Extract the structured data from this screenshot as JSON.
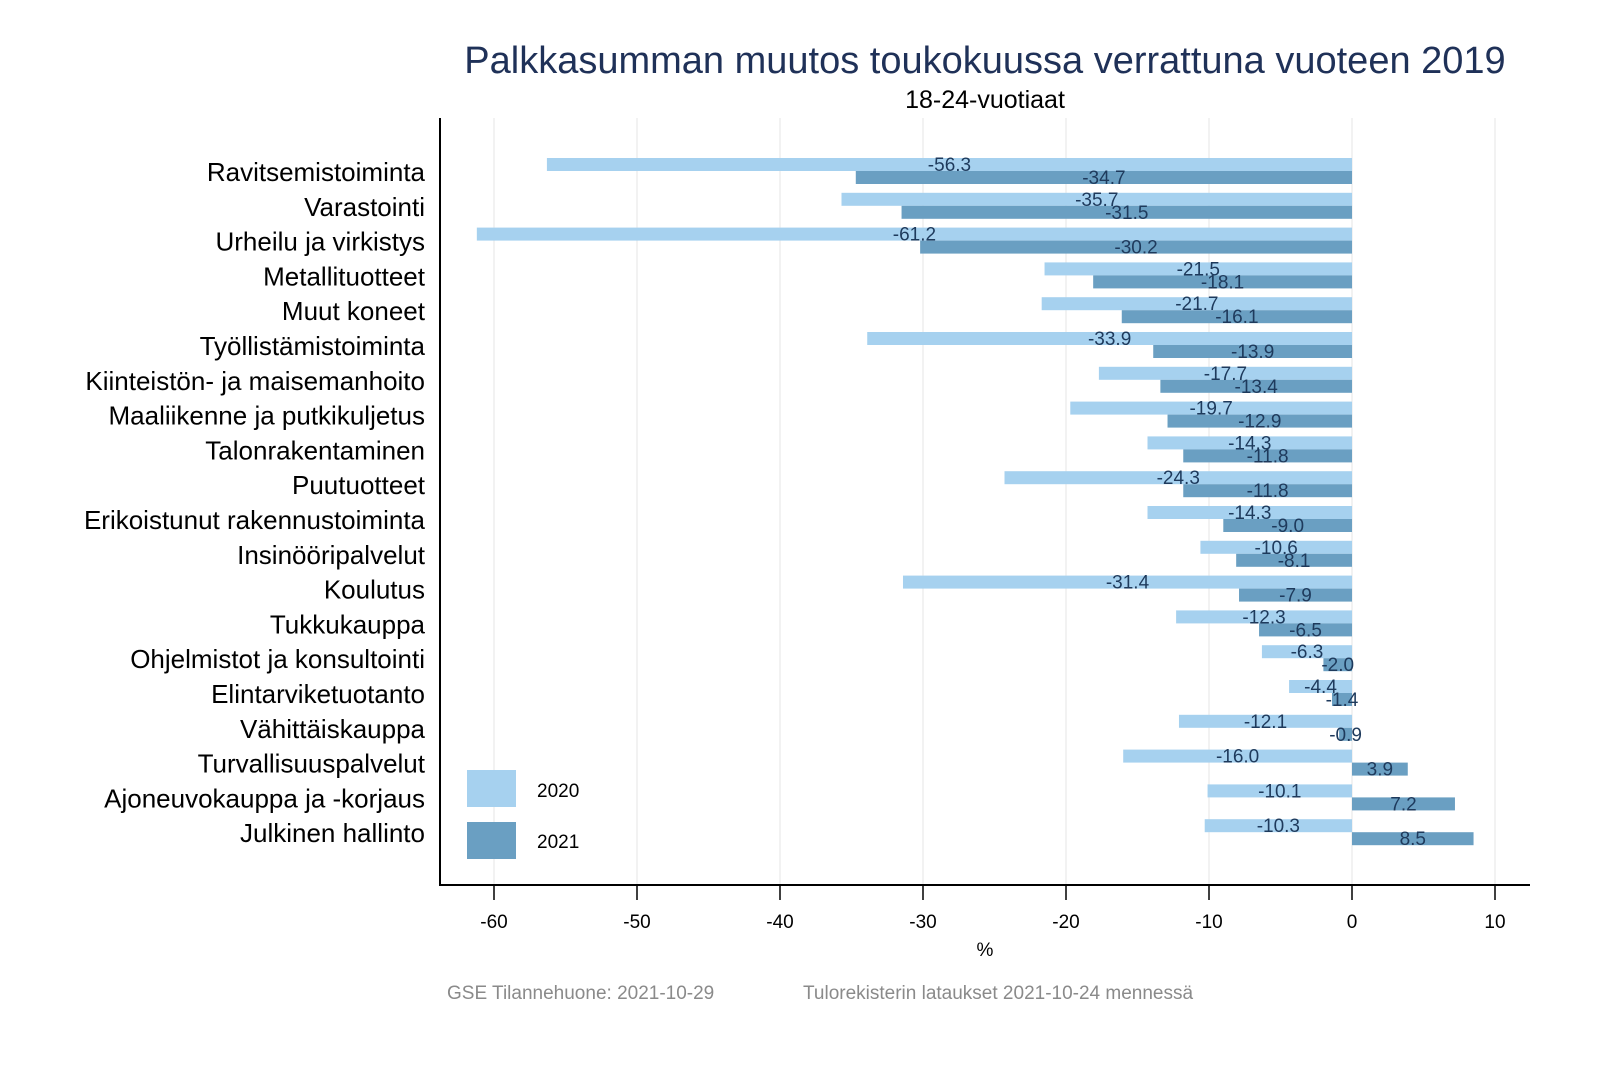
{
  "chart_data": {
    "type": "bar",
    "orientation": "horizontal",
    "title": "Palkkasumman muutos toukokuussa verrattuna vuoteen 2019",
    "subtitle": "18-24-vuotiaat",
    "xlabel": "%",
    "ylabel": "",
    "xlim": [
      -64,
      12.5
    ],
    "xticks": [
      -60,
      -50,
      -40,
      -30,
      -20,
      -10,
      0,
      10
    ],
    "grid": true,
    "legend_position": "bottom-left",
    "categories": [
      "Ravitsemistoiminta",
      "Varastointi",
      "Urheilu ja virkistys",
      "Metallituotteet",
      "Muut koneet",
      "Työllistämistoiminta",
      "Kiinteistön- ja maisemanhoito",
      "Maaliikenne ja putkikuljetus",
      "Talonrakentaminen",
      "Puutuotteet",
      "Erikoistunut rakennustoiminta",
      "Insinööripalvelut",
      "Koulutus",
      "Tukkukauppa",
      "Ohjelmistot ja konsultointi",
      "Elintarviketuotanto",
      "Vähittäiskauppa",
      "Turvallisuuspalvelut",
      "Ajoneuvokauppa ja -korjaus",
      "Julkinen hallinto"
    ],
    "series": [
      {
        "name": "2020",
        "color": "#a6d1ef",
        "values": [
          -56.3,
          -35.7,
          -61.2,
          -21.5,
          -21.7,
          -33.9,
          -17.7,
          -19.7,
          -14.3,
          -24.3,
          -14.3,
          -10.6,
          -31.4,
          -12.3,
          -6.3,
          -4.4,
          -12.1,
          -16.0,
          -10.1,
          -10.3
        ],
        "labels": [
          "-56.3",
          "-35.7",
          "-61.2",
          "-21.5",
          "-21.7",
          "-33.9",
          "-17.7",
          "-19.7",
          "-14.3",
          "-24.3",
          "-14.3",
          "-10.6",
          "-31.4",
          "-12.3",
          "-6.3",
          "-4.4",
          "-12.1",
          "-16.0",
          "-10.1",
          "-10.3"
        ]
      },
      {
        "name": "2021",
        "color": "#6a9fc2",
        "values": [
          -34.7,
          -31.5,
          -30.2,
          -18.1,
          -16.1,
          -13.9,
          -13.4,
          -12.9,
          -11.8,
          -11.8,
          -9.0,
          -8.1,
          -7.9,
          -6.5,
          -2.0,
          -1.4,
          -0.9,
          3.9,
          7.2,
          8.5
        ],
        "labels": [
          "-34.7",
          "-31.5",
          "-30.2",
          "-18.1",
          "-16.1",
          "-13.9",
          "-13.4",
          "-12.9",
          "-11.8",
          "-11.8",
          "-9.0",
          "-8.1",
          "-7.9",
          "-6.5",
          "-2.0",
          "-1.4",
          "-0.9",
          "3.9",
          "7.2",
          "8.5"
        ]
      }
    ],
    "footer": {
      "left": "GSE Tilannehuone: 2021-10-29",
      "right": "Tulorekisterin lataukset 2021-10-24 mennessä"
    }
  }
}
